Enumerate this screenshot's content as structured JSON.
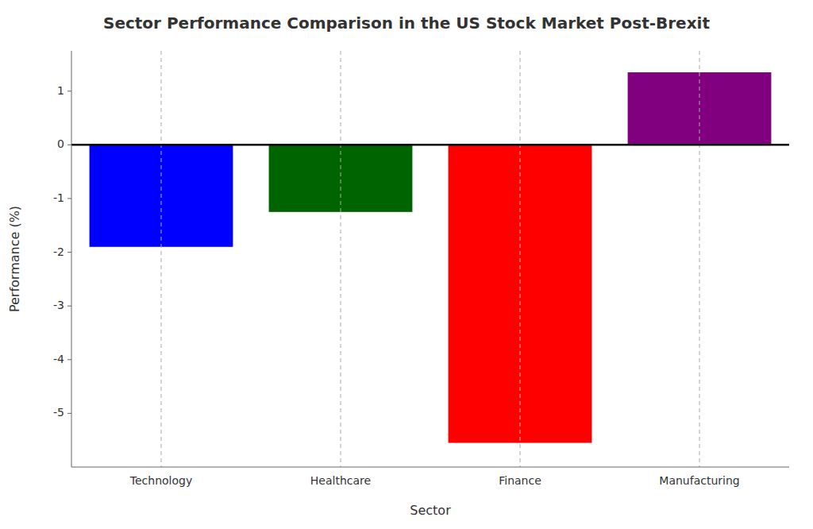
{
  "chart_data": {
    "type": "bar",
    "title": "Sector Performance Comparison in the US Stock Market Post-Brexit",
    "categories": [
      "Technology",
      "Healthcare",
      "Finance",
      "Manufacturing"
    ],
    "values": [
      -1.9,
      -1.25,
      -5.55,
      1.35
    ],
    "colors": [
      "#0000ff",
      "#006400",
      "#ff0000",
      "#800080"
    ],
    "xlabel": "Sector",
    "ylabel": "Performance (%)",
    "ylim": [
      -6.0,
      1.75
    ],
    "yticks": [
      -5,
      -4,
      -3,
      -2,
      -1,
      0,
      1
    ],
    "grid": "x"
  }
}
